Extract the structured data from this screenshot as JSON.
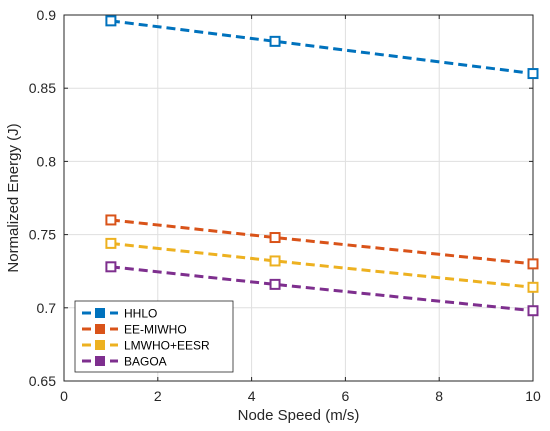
{
  "chart_data": {
    "type": "line",
    "xlabel": "Node Speed (m/s)",
    "ylabel": "Normalized Energy (J)",
    "xlim": [
      0,
      10
    ],
    "ylim": [
      0.65,
      0.9
    ],
    "x_ticks": [
      0,
      2,
      4,
      6,
      8,
      10
    ],
    "y_ticks": [
      0.65,
      0.7,
      0.75,
      0.8,
      0.85,
      0.9
    ],
    "grid": true,
    "legend_position": "bottom-left",
    "x": [
      1,
      4.5,
      10
    ],
    "series": [
      {
        "name": "HHLO",
        "color": "#0072BD",
        "values": [
          0.896,
          0.882,
          0.86
        ]
      },
      {
        "name": "EE-MIWHO",
        "color": "#D95319",
        "values": [
          0.76,
          0.748,
          0.73
        ]
      },
      {
        "name": "LMWHO+EESR",
        "color": "#EDB120",
        "values": [
          0.744,
          0.732,
          0.714
        ]
      },
      {
        "name": "BAGOA",
        "color": "#7E2F8E",
        "values": [
          0.728,
          0.716,
          0.698
        ]
      }
    ]
  }
}
